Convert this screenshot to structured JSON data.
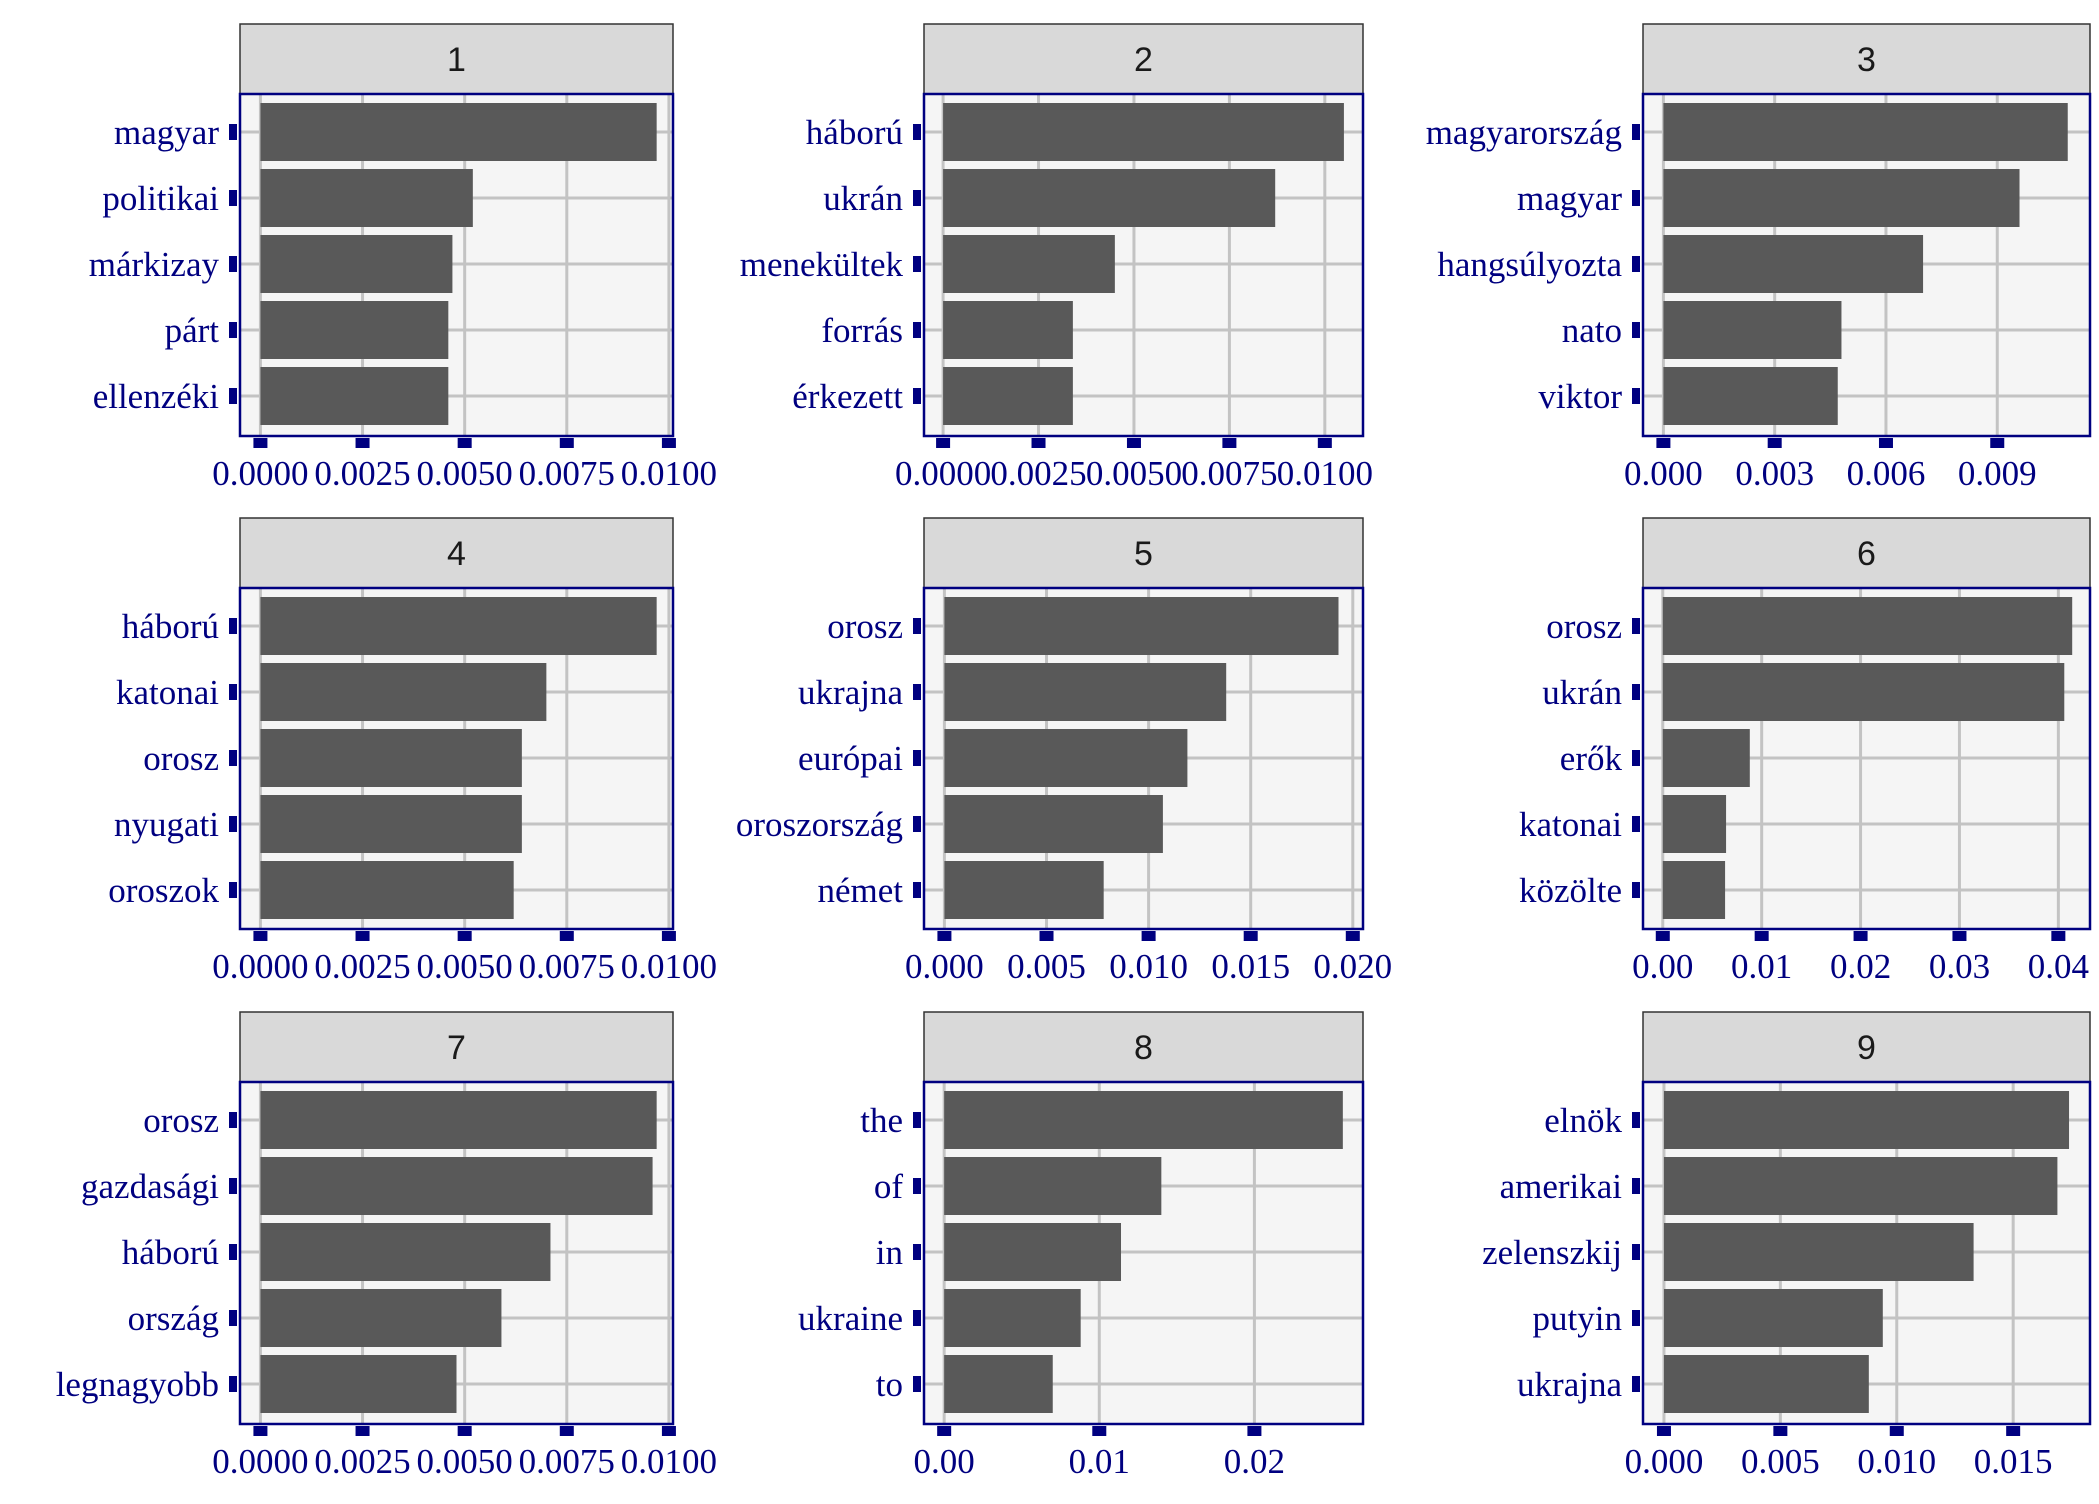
{
  "chart_data": [
    {
      "type": "bar",
      "orientation": "horizontal",
      "panel": "1",
      "categories": [
        "magyar",
        "politikai",
        "márkizay",
        "párt",
        "ellenzéki"
      ],
      "values": [
        0.0097,
        0.0052,
        0.0047,
        0.0046,
        0.0046
      ],
      "xlim": [
        -0.0005,
        0.0101
      ],
      "xticks": [
        0,
        0.0025,
        0.005,
        0.0075,
        0.01
      ],
      "xtick_labels": [
        "0.0000",
        "0.0025",
        "0.0050",
        "0.0075",
        "0.0100"
      ],
      "grid": true
    },
    {
      "type": "bar",
      "orientation": "horizontal",
      "panel": "2",
      "categories": [
        "háború",
        "ukrán",
        "menekültek",
        "forrás",
        "érkezett"
      ],
      "values": [
        0.0105,
        0.0087,
        0.0045,
        0.0034,
        0.0034
      ],
      "xlim": [
        -0.0005,
        0.011
      ],
      "xticks": [
        0,
        0.0025,
        0.005,
        0.0075,
        0.01
      ],
      "xtick_labels": [
        "0.0000",
        "0.0025",
        "0.0050",
        "0.0075",
        "0.0100"
      ],
      "grid": true
    },
    {
      "type": "bar",
      "orientation": "horizontal",
      "panel": "3",
      "categories": [
        "magyarország",
        "magyar",
        "hangsúlyozta",
        "nato",
        "viktor"
      ],
      "values": [
        0.0109,
        0.0096,
        0.007,
        0.0048,
        0.0047
      ],
      "xlim": [
        -0.00055,
        0.0115
      ],
      "xticks": [
        0,
        0.003,
        0.006,
        0.009
      ],
      "xtick_labels": [
        "0.000",
        "0.003",
        "0.006",
        "0.009"
      ],
      "grid": true
    },
    {
      "type": "bar",
      "orientation": "horizontal",
      "panel": "4",
      "categories": [
        "háború",
        "katonai",
        "orosz",
        "nyugati",
        "oroszok"
      ],
      "values": [
        0.0097,
        0.007,
        0.0064,
        0.0064,
        0.0062
      ],
      "xlim": [
        -0.0005,
        0.0101
      ],
      "xticks": [
        0,
        0.0025,
        0.005,
        0.0075,
        0.01
      ],
      "xtick_labels": [
        "0.0000",
        "0.0025",
        "0.0050",
        "0.0075",
        "0.0100"
      ],
      "grid": true
    },
    {
      "type": "bar",
      "orientation": "horizontal",
      "panel": "5",
      "categories": [
        "orosz",
        "ukrajna",
        "európai",
        "oroszország",
        "német"
      ],
      "values": [
        0.0193,
        0.0138,
        0.0119,
        0.0107,
        0.0078
      ],
      "xlim": [
        -0.001,
        0.0205
      ],
      "xticks": [
        0,
        0.005,
        0.01,
        0.015,
        0.02
      ],
      "xtick_labels": [
        "0.000",
        "0.005",
        "0.010",
        "0.015",
        "0.020"
      ],
      "grid": true
    },
    {
      "type": "bar",
      "orientation": "horizontal",
      "panel": "6",
      "categories": [
        "orosz",
        "ukrán",
        "erők",
        "katonai",
        "közölte"
      ],
      "values": [
        0.0414,
        0.0406,
        0.0088,
        0.0064,
        0.0063
      ],
      "xlim": [
        -0.002,
        0.0432
      ],
      "xticks": [
        0,
        0.01,
        0.02,
        0.03,
        0.04
      ],
      "xtick_labels": [
        "0.00",
        "0.01",
        "0.02",
        "0.03",
        "0.04"
      ],
      "grid": true
    },
    {
      "type": "bar",
      "orientation": "horizontal",
      "panel": "7",
      "categories": [
        "orosz",
        "gazdasági",
        "háború",
        "ország",
        "legnagyobb"
      ],
      "values": [
        0.0097,
        0.0096,
        0.0071,
        0.0059,
        0.0048
      ],
      "xlim": [
        -0.0005,
        0.0101
      ],
      "xticks": [
        0,
        0.0025,
        0.005,
        0.0075,
        0.01
      ],
      "xtick_labels": [
        "0.0000",
        "0.0025",
        "0.0050",
        "0.0075",
        "0.0100"
      ],
      "grid": true
    },
    {
      "type": "bar",
      "orientation": "horizontal",
      "panel": "8",
      "categories": [
        "the",
        "of",
        "in",
        "ukraine",
        "to"
      ],
      "values": [
        0.0257,
        0.014,
        0.0114,
        0.0088,
        0.007
      ],
      "xlim": [
        -0.0013,
        0.027
      ],
      "xticks": [
        0,
        0.01,
        0.02
      ],
      "xtick_labels": [
        "0.00",
        "0.01",
        "0.02"
      ],
      "grid": true
    },
    {
      "type": "bar",
      "orientation": "horizontal",
      "panel": "9",
      "categories": [
        "elnök",
        "amerikai",
        "zelenszkij",
        "putyin",
        "ukrajna"
      ],
      "values": [
        0.0174,
        0.0169,
        0.0133,
        0.0094,
        0.0088
      ],
      "xlim": [
        -0.0009,
        0.0183
      ],
      "xticks": [
        0,
        0.005,
        0.01,
        0.015
      ],
      "xtick_labels": [
        "0.000",
        "0.005",
        "0.010",
        "0.015"
      ],
      "grid": true
    }
  ],
  "colors": {
    "bar": "#595959",
    "panel_background": "#f5f5f5",
    "grid": "#c3c3c3",
    "axis": "#000080",
    "strip_fill": "#d9d9d9",
    "strip_text": "#1a1a1a"
  }
}
